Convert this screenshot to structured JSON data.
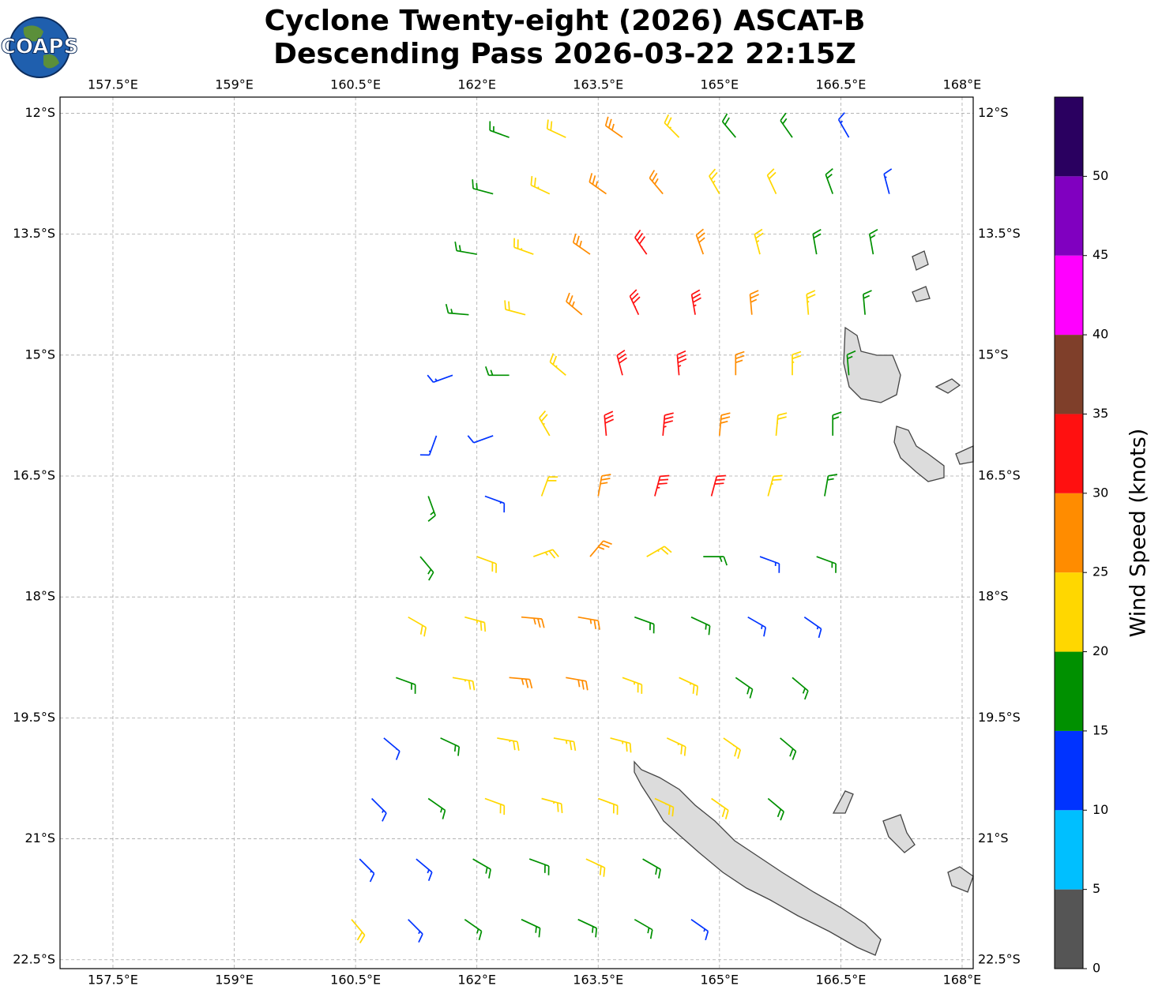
{
  "chart_data": {
    "type": "barbs",
    "title": "Cyclone Twenty-eight (2026) ASCAT-B",
    "subtitle": "Descending Pass 2026-03-22 22:15Z",
    "logo": "COAPS",
    "xlim": [
      156.846,
      168.137
    ],
    "ylim": [
      -22.61,
      -11.8
    ],
    "xticks": [
      {
        "value": 157.5,
        "label": "157.5°E"
      },
      {
        "value": 159,
        "label": "159°E"
      },
      {
        "value": 160.5,
        "label": "160.5°E"
      },
      {
        "value": 162,
        "label": "162°E"
      },
      {
        "value": 163.5,
        "label": "163.5°E"
      },
      {
        "value": 165,
        "label": "165°E"
      },
      {
        "value": 166.5,
        "label": "166.5°E"
      },
      {
        "value": 168,
        "label": "168°E"
      }
    ],
    "yticks": [
      {
        "value": -12,
        "label": "12°S"
      },
      {
        "value": -13.5,
        "label": "13.5°S"
      },
      {
        "value": -15,
        "label": "15°S"
      },
      {
        "value": -16.5,
        "label": "16.5°S"
      },
      {
        "value": -18,
        "label": "18°S"
      },
      {
        "value": -19.5,
        "label": "19.5°S"
      },
      {
        "value": -21,
        "label": "21°S"
      },
      {
        "value": -22.5,
        "label": "22.5°S"
      }
    ],
    "grid": true,
    "colorbar": {
      "label": "Wind Speed (knots)",
      "bounds": [
        0,
        5,
        10,
        15,
        20,
        25,
        30,
        35,
        40,
        45,
        50,
        55
      ],
      "colors": [
        "#555555",
        "#00bfff",
        "#0033ff",
        "#009000",
        "#ffd700",
        "#ff8c00",
        "#ff1010",
        "#7f3f2a",
        "#ff00ff",
        "#8000c0",
        "#2a0060"
      ],
      "ticks": [
        0,
        5,
        10,
        15,
        20,
        25,
        30,
        35,
        40,
        45,
        50
      ]
    },
    "barbs": [
      [
        162.4,
        -12.3,
        16,
        290
      ],
      [
        163.1,
        -12.3,
        20,
        295
      ],
      [
        163.8,
        -12.3,
        27,
        305
      ],
      [
        164.5,
        -12.3,
        22,
        315
      ],
      [
        165.2,
        -12.3,
        19,
        320
      ],
      [
        165.9,
        -12.3,
        17,
        325
      ],
      [
        166.6,
        -12.3,
        13,
        330
      ],
      [
        162.2,
        -13.0,
        17,
        285
      ],
      [
        162.9,
        -13.0,
        22,
        295
      ],
      [
        163.6,
        -13.0,
        26,
        305
      ],
      [
        164.3,
        -13.0,
        27,
        320
      ],
      [
        165.0,
        -13.0,
        23,
        330
      ],
      [
        165.7,
        -13.0,
        20,
        335
      ],
      [
        166.4,
        -13.0,
        17,
        340
      ],
      [
        167.1,
        -13.0,
        12,
        345
      ],
      [
        162.0,
        -13.75,
        17,
        280
      ],
      [
        162.7,
        -13.75,
        22,
        290
      ],
      [
        163.4,
        -13.75,
        27,
        305
      ],
      [
        164.1,
        -13.75,
        31,
        325
      ],
      [
        164.8,
        -13.75,
        28,
        340
      ],
      [
        165.5,
        -13.75,
        23,
        345
      ],
      [
        166.2,
        -13.75,
        19,
        350
      ],
      [
        166.9,
        -13.75,
        16,
        350
      ],
      [
        161.9,
        -14.5,
        15,
        275
      ],
      [
        162.6,
        -14.5,
        20,
        285
      ],
      [
        163.3,
        -14.5,
        26,
        310
      ],
      [
        164.0,
        -14.5,
        31,
        335
      ],
      [
        164.7,
        -14.5,
        33,
        350
      ],
      [
        165.4,
        -14.5,
        27,
        355
      ],
      [
        166.1,
        -14.5,
        22,
        355
      ],
      [
        166.8,
        -14.5,
        17,
        355
      ],
      [
        161.7,
        -15.25,
        13,
        250
      ],
      [
        162.4,
        -15.25,
        16,
        270
      ],
      [
        163.1,
        -15.25,
        22,
        310
      ],
      [
        163.8,
        -15.25,
        30,
        345
      ],
      [
        164.5,
        -15.25,
        33,
        355
      ],
      [
        165.2,
        -15.25,
        28,
        0
      ],
      [
        165.9,
        -15.25,
        22,
        0
      ],
      [
        166.6,
        -15.25,
        16,
        355
      ],
      [
        161.5,
        -16.0,
        12,
        200
      ],
      [
        162.2,
        -16.0,
        10,
        250
      ],
      [
        162.9,
        -16.0,
        22,
        330
      ],
      [
        163.6,
        -16.0,
        30,
        355
      ],
      [
        164.3,
        -16.0,
        33,
        5
      ],
      [
        165.0,
        -16.0,
        28,
        5
      ],
      [
        165.7,
        -16.0,
        21,
        5
      ],
      [
        166.4,
        -16.0,
        17,
        0
      ],
      [
        161.4,
        -16.75,
        15,
        160
      ],
      [
        162.1,
        -16.75,
        12,
        110
      ],
      [
        162.8,
        -16.75,
        20,
        20
      ],
      [
        163.5,
        -16.75,
        28,
        10
      ],
      [
        164.2,
        -16.75,
        33,
        15
      ],
      [
        164.9,
        -16.75,
        30,
        15
      ],
      [
        165.6,
        -16.75,
        22,
        15
      ],
      [
        166.3,
        -16.75,
        17,
        10
      ],
      [
        161.3,
        -17.5,
        16,
        140
      ],
      [
        162.0,
        -17.5,
        20,
        110
      ],
      [
        162.7,
        -17.5,
        24,
        70
      ],
      [
        163.4,
        -17.5,
        27,
        40
      ],
      [
        164.1,
        -17.5,
        22,
        60
      ],
      [
        164.8,
        -17.5,
        16,
        90
      ],
      [
        165.5,
        -17.5,
        14,
        110
      ],
      [
        166.2,
        -17.5,
        16,
        110
      ],
      [
        161.15,
        -18.25,
        20,
        120
      ],
      [
        161.85,
        -18.25,
        23,
        105
      ],
      [
        162.55,
        -18.25,
        27,
        95
      ],
      [
        163.25,
        -18.25,
        25,
        100
      ],
      [
        163.95,
        -18.25,
        18,
        110
      ],
      [
        164.65,
        -18.25,
        16,
        115
      ],
      [
        165.35,
        -18.25,
        14,
        120
      ],
      [
        166.05,
        -18.25,
        13,
        125
      ],
      [
        161.0,
        -19.0,
        17,
        110
      ],
      [
        161.7,
        -19.0,
        22,
        100
      ],
      [
        162.4,
        -19.0,
        27,
        95
      ],
      [
        163.1,
        -19.0,
        28,
        100
      ],
      [
        163.8,
        -19.0,
        23,
        110
      ],
      [
        164.5,
        -19.0,
        22,
        115
      ],
      [
        165.2,
        -19.0,
        18,
        125
      ],
      [
        165.9,
        -19.0,
        16,
        130
      ],
      [
        160.85,
        -19.75,
        11,
        130
      ],
      [
        161.55,
        -19.75,
        17,
        115
      ],
      [
        162.25,
        -19.75,
        22,
        100
      ],
      [
        162.95,
        -19.75,
        24,
        100
      ],
      [
        163.65,
        -19.75,
        23,
        105
      ],
      [
        164.35,
        -19.75,
        22,
        115
      ],
      [
        165.05,
        -19.75,
        21,
        125
      ],
      [
        165.75,
        -19.75,
        19,
        130
      ],
      [
        160.7,
        -20.5,
        13,
        135
      ],
      [
        161.4,
        -20.5,
        15,
        125
      ],
      [
        162.1,
        -20.5,
        20,
        110
      ],
      [
        162.8,
        -20.5,
        22,
        105
      ],
      [
        163.5,
        -20.5,
        21,
        110
      ],
      [
        164.2,
        -20.5,
        21,
        115
      ],
      [
        164.9,
        -20.5,
        21,
        125
      ],
      [
        165.6,
        -20.5,
        19,
        130
      ],
      [
        160.55,
        -21.25,
        12,
        135
      ],
      [
        161.25,
        -21.25,
        14,
        130
      ],
      [
        161.95,
        -21.25,
        17,
        120
      ],
      [
        162.65,
        -21.25,
        19,
        110
      ],
      [
        163.35,
        -21.25,
        21,
        115
      ],
      [
        164.05,
        -21.25,
        18,
        120
      ],
      [
        160.45,
        -22.0,
        20,
        140
      ],
      [
        161.15,
        -22.0,
        13,
        135
      ],
      [
        161.85,
        -22.0,
        15,
        125
      ],
      [
        162.55,
        -22.0,
        17,
        115
      ],
      [
        163.25,
        -22.0,
        17,
        115
      ],
      [
        163.95,
        -22.0,
        16,
        120
      ],
      [
        164.65,
        -22.0,
        13,
        125
      ]
    ]
  }
}
